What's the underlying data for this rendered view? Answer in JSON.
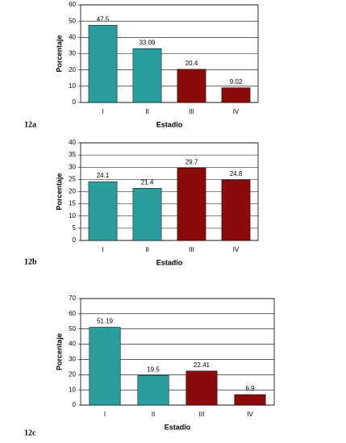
{
  "chart_data": [
    {
      "type": "bar",
      "figure_label": "12a",
      "x_label": "Estadio",
      "y_label": "Porcentaje",
      "categories": [
        "I",
        "II",
        "III",
        "IV"
      ],
      "values": [
        47.5,
        33.09,
        20.4,
        9.02
      ],
      "colors": [
        "#2a9d9d",
        "#2a9d9d",
        "#8b0a0a",
        "#8b0a0a"
      ],
      "ylim": [
        0,
        60
      ],
      "yticks": [
        0,
        10,
        20,
        30,
        40,
        50,
        60
      ],
      "grid": true
    },
    {
      "type": "bar",
      "figure_label": "12b",
      "x_label": "Estadio",
      "y_label": "Porcentaje",
      "categories": [
        "I",
        "II",
        "III",
        "IV"
      ],
      "values": [
        24.1,
        21.4,
        29.7,
        24.8
      ],
      "colors": [
        "#2a9d9d",
        "#2a9d9d",
        "#8b0a0a",
        "#8b0a0a"
      ],
      "ylim": [
        0,
        40
      ],
      "yticks": [
        0,
        5,
        10,
        15,
        20,
        25,
        30,
        35,
        40
      ],
      "grid": true
    },
    {
      "type": "bar",
      "figure_label": "12c",
      "x_label": "Estadio",
      "y_label": "Porcentaje",
      "categories": [
        "I",
        "II",
        "III",
        "IV"
      ],
      "values": [
        51.19,
        19.5,
        22.41,
        6.9
      ],
      "colors": [
        "#2a9d9d",
        "#2a9d9d",
        "#8b0a0a",
        "#8b0a0a"
      ],
      "ylim": [
        0,
        70
      ],
      "yticks": [
        0,
        10,
        20,
        30,
        40,
        50,
        60,
        70
      ],
      "grid": true
    }
  ]
}
